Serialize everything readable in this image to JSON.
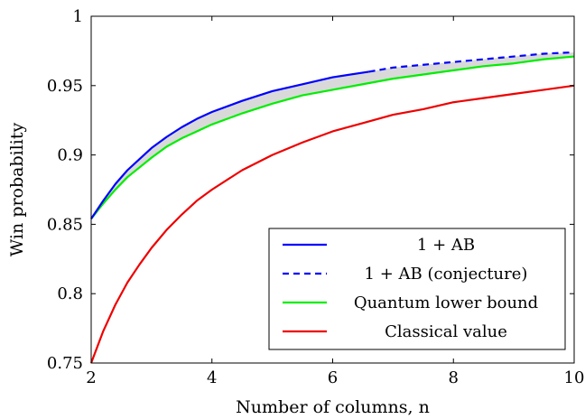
{
  "chart_data": {
    "type": "line",
    "title": "",
    "xlabel": "Number of columns, n",
    "ylabel": "Win probability",
    "xlim": [
      2,
      10
    ],
    "ylim": [
      0.75,
      1
    ],
    "xticks": [
      2,
      4,
      6,
      8,
      10
    ],
    "yticks": [
      0.75,
      0.8,
      0.85,
      0.9,
      0.95,
      1
    ],
    "ytick_labels": [
      "0.75",
      "0.8",
      "0.85",
      "0.9",
      "0.95",
      "1"
    ],
    "grid": false,
    "legend_position": "bottom-right",
    "shaded_region": {
      "between": [
        "1 + AB",
        "Quantum lower bound"
      ],
      "color": "#d9d9d9"
    },
    "series": [
      {
        "name": "1 + AB",
        "color": "#0000ff",
        "style": "solid",
        "x": [
          2,
          2.2,
          2.4,
          2.6,
          2.8,
          3,
          3.25,
          3.5,
          3.75,
          4,
          4.5,
          5,
          5.5,
          6,
          6.6
        ],
        "y": [
          0.854,
          0.867,
          0.879,
          0.889,
          0.897,
          0.905,
          0.913,
          0.92,
          0.926,
          0.931,
          0.939,
          0.946,
          0.951,
          0.956,
          0.96
        ]
      },
      {
        "name": "1 + AB (conjecture)",
        "color": "#0000ff",
        "style": "dashed",
        "x": [
          6.6,
          7,
          7.5,
          8,
          8.5,
          9,
          9.5,
          10
        ],
        "y": [
          0.96,
          0.963,
          0.965,
          0.967,
          0.969,
          0.971,
          0.973,
          0.974
        ]
      },
      {
        "name": "Quantum lower bound",
        "color": "#00ee00",
        "style": "solid",
        "x": [
          2,
          2.2,
          2.4,
          2.6,
          2.8,
          3,
          3.25,
          3.5,
          3.75,
          4,
          4.5,
          5,
          5.5,
          6,
          6.5,
          7,
          7.5,
          8,
          8.5,
          9,
          9.5,
          10
        ],
        "y": [
          0.854,
          0.865,
          0.875,
          0.884,
          0.891,
          0.898,
          0.906,
          0.912,
          0.917,
          0.922,
          0.93,
          0.937,
          0.943,
          0.947,
          0.951,
          0.955,
          0.958,
          0.961,
          0.964,
          0.966,
          0.969,
          0.971
        ]
      },
      {
        "name": "Classical value",
        "color": "#ee0000",
        "style": "solid",
        "x": [
          2,
          2.2,
          2.4,
          2.6,
          2.8,
          3,
          3.25,
          3.5,
          3.75,
          4,
          4.5,
          5,
          5.5,
          6,
          6.5,
          7,
          7.5,
          8,
          8.5,
          9,
          9.5,
          10
        ],
        "y": [
          0.75,
          0.773,
          0.792,
          0.808,
          0.821,
          0.833,
          0.846,
          0.857,
          0.867,
          0.875,
          0.889,
          0.9,
          0.909,
          0.917,
          0.923,
          0.929,
          0.933,
          0.938,
          0.941,
          0.944,
          0.947,
          0.95
        ]
      }
    ],
    "legend": [
      {
        "label": "1 + AB",
        "series": 0
      },
      {
        "label": "1 + AB (conjecture)",
        "series": 1
      },
      {
        "label": "Quantum lower bound",
        "series": 2
      },
      {
        "label": "Classical value",
        "series": 3
      }
    ]
  }
}
